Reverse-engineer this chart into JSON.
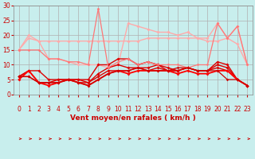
{
  "background_color": "#c8eeed",
  "grid_color": "#b0b0b0",
  "xlabel": "Vent moyen/en rafales ( km/h )",
  "xlim": [
    -0.5,
    23.5
  ],
  "ylim": [
    0,
    30
  ],
  "yticks": [
    0,
    5,
    10,
    15,
    20,
    25,
    30
  ],
  "xticks": [
    0,
    1,
    2,
    3,
    4,
    5,
    6,
    7,
    8,
    9,
    10,
    11,
    12,
    13,
    14,
    15,
    16,
    17,
    18,
    19,
    20,
    21,
    22,
    23
  ],
  "series": [
    {
      "x": [
        0,
        1,
        2,
        3,
        4,
        5,
        6,
        7,
        8,
        9,
        10,
        11,
        12,
        13,
        14,
        15,
        16,
        17,
        18,
        19,
        20,
        21,
        22,
        23
      ],
      "y": [
        15,
        19,
        18,
        12,
        12,
        11,
        10,
        10,
        10,
        9,
        10,
        24,
        23,
        22,
        21,
        21,
        20,
        21,
        19,
        19,
        24,
        19,
        23,
        10
      ],
      "color": "#ffaaaa",
      "lw": 1.0,
      "marker": "D",
      "ms": 2.0
    },
    {
      "x": [
        0,
        1,
        2,
        3,
        4,
        5,
        6,
        7,
        8,
        9,
        10,
        11,
        12,
        13,
        14,
        15,
        16,
        17,
        18,
        19,
        20,
        21,
        22,
        23
      ],
      "y": [
        15,
        20,
        18,
        18,
        18,
        18,
        18,
        18,
        18,
        18,
        18,
        18,
        18,
        19,
        19,
        19,
        19,
        19,
        19,
        18,
        18,
        19,
        17,
        10
      ],
      "color": "#ffaaaa",
      "lw": 1.0,
      "marker": "D",
      "ms": 2.0
    },
    {
      "x": [
        0,
        1,
        2,
        3,
        4,
        5,
        6,
        7,
        8,
        9,
        10,
        11,
        12,
        13,
        14,
        15,
        16,
        17,
        18,
        19,
        20,
        21,
        22,
        23
      ],
      "y": [
        6,
        8,
        8,
        5,
        5,
        5,
        5,
        5,
        10,
        10,
        12,
        12,
        10,
        11,
        10,
        8,
        8,
        9,
        8,
        8,
        11,
        10,
        5,
        3
      ],
      "color": "#dd0000",
      "lw": 1.0,
      "marker": "D",
      "ms": 2.0
    },
    {
      "x": [
        0,
        1,
        2,
        3,
        4,
        5,
        6,
        7,
        8,
        9,
        10,
        11,
        12,
        13,
        14,
        15,
        16,
        17,
        18,
        19,
        20,
        21,
        22,
        23
      ],
      "y": [
        6,
        8,
        4,
        4,
        4,
        5,
        5,
        4,
        7,
        9,
        10,
        9,
        9,
        9,
        10,
        9,
        8,
        9,
        8,
        8,
        10,
        9,
        5,
        3
      ],
      "color": "#dd0000",
      "lw": 1.0,
      "marker": "D",
      "ms": 2.0
    },
    {
      "x": [
        0,
        1,
        2,
        3,
        4,
        5,
        6,
        7,
        8,
        9,
        10,
        11,
        12,
        13,
        14,
        15,
        16,
        17,
        18,
        19,
        20,
        21,
        22,
        23
      ],
      "y": [
        6,
        6,
        4,
        4,
        5,
        5,
        4,
        4,
        6,
        8,
        8,
        8,
        9,
        8,
        9,
        8,
        8,
        9,
        8,
        8,
        9,
        8,
        5,
        3
      ],
      "color": "#dd0000",
      "lw": 1.0,
      "marker": "D",
      "ms": 2.0
    },
    {
      "x": [
        0,
        1,
        2,
        3,
        4,
        5,
        6,
        7,
        8,
        9,
        10,
        11,
        12,
        13,
        14,
        15,
        16,
        17,
        18,
        19,
        20,
        21,
        22,
        23
      ],
      "y": [
        5,
        8,
        4,
        3,
        4,
        5,
        4,
        3,
        5,
        7,
        8,
        7,
        8,
        8,
        8,
        8,
        7,
        8,
        7,
        7,
        8,
        8,
        5,
        3
      ],
      "color": "#ff0000",
      "lw": 1.3,
      "marker": "D",
      "ms": 2.0
    },
    {
      "x": [
        0,
        1,
        2,
        3,
        4,
        5,
        6,
        7,
        8,
        9,
        10,
        11,
        12,
        13,
        14,
        15,
        16,
        17,
        18,
        19,
        20,
        21,
        22,
        23
      ],
      "y": [
        15,
        15,
        15,
        12,
        12,
        11,
        11,
        10,
        29,
        9,
        11,
        12,
        10,
        11,
        10,
        10,
        10,
        9,
        10,
        10,
        24,
        19,
        23,
        10
      ],
      "color": "#ff7777",
      "lw": 0.9,
      "marker": "D",
      "ms": 1.8
    },
    {
      "x": [
        0,
        1,
        2,
        3,
        4,
        5,
        6,
        7,
        8,
        9,
        10,
        11,
        12,
        13,
        14,
        15,
        16,
        17,
        18,
        19,
        20,
        21,
        22,
        23
      ],
      "y": [
        6,
        6,
        4,
        4,
        4,
        5,
        4,
        3,
        5,
        7,
        8,
        8,
        9,
        8,
        8,
        8,
        9,
        9,
        8,
        8,
        8,
        5,
        5,
        3
      ],
      "color": "#cc0000",
      "lw": 0.9,
      "marker": "D",
      "ms": 1.8
    }
  ],
  "tick_fontsize": 5.5,
  "label_fontsize": 6.5,
  "tick_color": "#cc0000",
  "label_color": "#cc0000"
}
